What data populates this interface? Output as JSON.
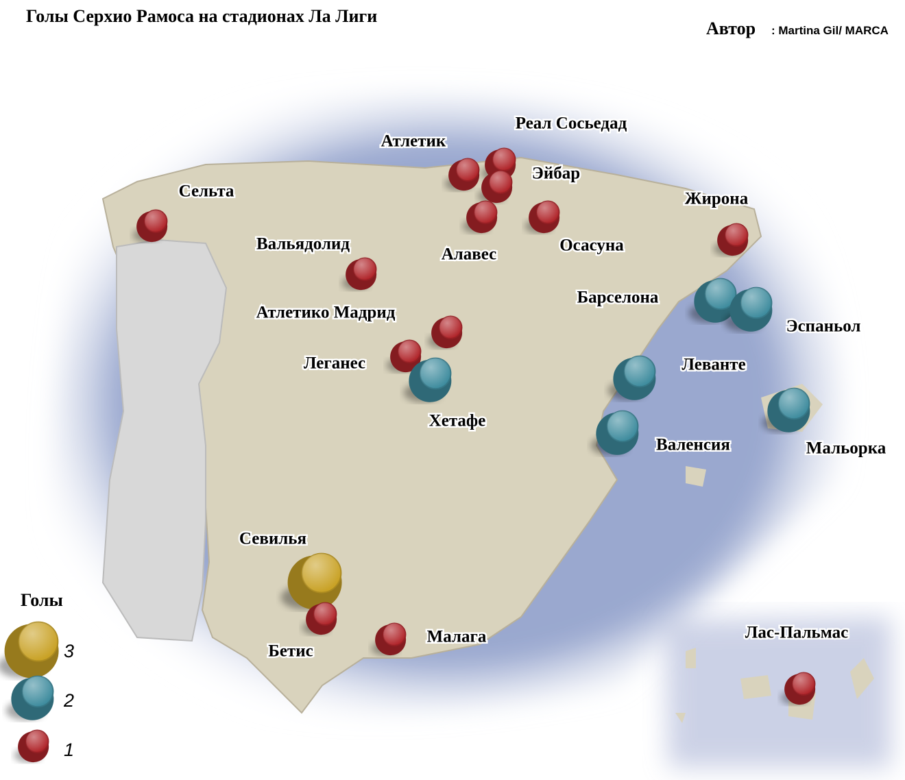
{
  "title": "Голы Серхио Рамоса на стадионах Ла Лиги",
  "author": {
    "label": "Автор",
    "name": ": Martina Gil/ MARCA"
  },
  "legend": {
    "title": "Голы",
    "items": [
      {
        "goals": 3,
        "color": "#c9a226"
      },
      {
        "goals": 2,
        "color": "#3f8c9e"
      },
      {
        "goals": 1,
        "color": "#b0252a"
      }
    ]
  },
  "clubs": [
    {
      "name": "Сельта",
      "goals": 1
    },
    {
      "name": "Вальядолид",
      "goals": 1
    },
    {
      "name": "Атлетик",
      "goals": 1
    },
    {
      "name": "Реал Сосьедад",
      "goals": 1
    },
    {
      "name": "Эйбар",
      "goals": 1
    },
    {
      "name": "Алавес",
      "goals": 1
    },
    {
      "name": "Осасуна",
      "goals": 1
    },
    {
      "name": "Жирона",
      "goals": 1
    },
    {
      "name": "Барселона",
      "goals": 2
    },
    {
      "name": "Эспаньол",
      "goals": 2
    },
    {
      "name": "Атлетико Мадрид",
      "goals": 1
    },
    {
      "name": "Леганес",
      "goals": 1
    },
    {
      "name": "Хетафе",
      "goals": 2
    },
    {
      "name": "Леванте",
      "goals": 2
    },
    {
      "name": "Валенсия",
      "goals": 2
    },
    {
      "name": "Мальорка",
      "goals": 2
    },
    {
      "name": "Севилья",
      "goals": 3
    },
    {
      "name": "Бетис",
      "goals": 1
    },
    {
      "name": "Малага",
      "goals": 1
    },
    {
      "name": "Лас-Пальмас",
      "goals": 1
    }
  ]
}
